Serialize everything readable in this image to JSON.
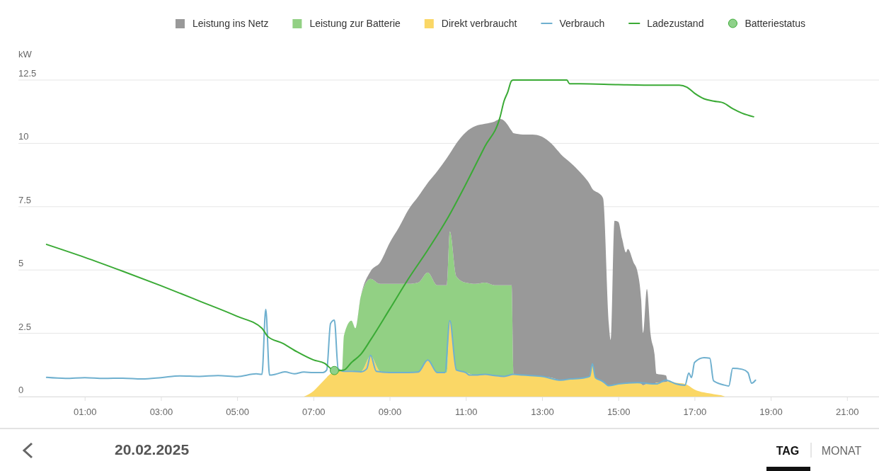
{
  "chart_data": {
    "type": "area",
    "stacked": true,
    "ylabel": "kW",
    "xlim": [
      -0.74,
      21.84
    ],
    "ylim": [
      0,
      12.5
    ],
    "xticks": [
      {
        "value": 1,
        "label": "01:00"
      },
      {
        "value": 3,
        "label": "03:00"
      },
      {
        "value": 5,
        "label": "05:00"
      },
      {
        "value": 7,
        "label": "07:00"
      },
      {
        "value": 9,
        "label": "09:00"
      },
      {
        "value": 11,
        "label": "11:00"
      },
      {
        "value": 13,
        "label": "13:00"
      },
      {
        "value": 15,
        "label": "15:00"
      },
      {
        "value": 17,
        "label": "17:00"
      },
      {
        "value": 19,
        "label": "19:00"
      },
      {
        "value": 21,
        "label": "21:00"
      }
    ],
    "yticks": [
      0,
      2.5,
      5,
      7.5,
      10,
      12.5
    ],
    "grid": "y",
    "legend": "top",
    "marker": "none",
    "line_style": "solid",
    "annotations": [
      "20.02.2025",
      "TAG",
      "MONAT"
    ],
    "x": [
      6.75,
      7.0,
      7.25,
      7.5,
      7.75,
      7.8,
      8.0,
      8.1,
      8.25,
      8.5,
      8.75,
      9.0,
      9.25,
      9.5,
      9.75,
      10.0,
      10.25,
      10.5,
      10.58,
      10.75,
      11.0,
      11.25,
      11.5,
      11.75,
      11.9,
      12.0,
      12.2,
      12.25,
      12.5,
      12.75,
      13.0,
      13.25,
      13.5,
      13.75,
      14.0,
      14.25,
      14.32,
      14.4,
      14.5,
      14.6,
      14.75,
      14.8,
      14.9,
      15.0,
      15.1,
      15.2,
      15.25,
      15.4,
      15.5,
      15.6,
      15.65,
      15.75,
      15.85,
      15.95,
      16.0,
      16.25,
      16.3,
      16.5,
      16.75,
      17.0,
      17.5,
      17.75,
      17.8
    ],
    "series": [
      {
        "name": "Direkt verbraucht",
        "color": "#fad766",
        "values": [
          0,
          0.22,
          0.6,
          0.95,
          1.03,
          1.03,
          1.03,
          1.0,
          1.0,
          1.6,
          1.0,
          0.95,
          0.95,
          0.95,
          0.97,
          1.45,
          0.95,
          0.95,
          3.0,
          1.05,
          0.95,
          0.85,
          0.88,
          0.83,
          0.8,
          0.8,
          0.85,
          0.88,
          0.85,
          0.82,
          0.8,
          0.75,
          0.65,
          0.7,
          0.72,
          0.8,
          1.3,
          0.75,
          0.65,
          0.55,
          0.43,
          0.45,
          0.48,
          0.5,
          0.52,
          0.5,
          0.52,
          0.55,
          0.55,
          0.5,
          0.45,
          0.5,
          0.5,
          0.52,
          0.55,
          0.58,
          0.6,
          0.55,
          0.5,
          0.28,
          0.1,
          0.03,
          0
        ]
      },
      {
        "name": "Leistung zur Batterie",
        "color": "#92d084",
        "values": [
          0,
          0,
          0,
          0,
          0,
          1.37,
          1.97,
          1.7,
          3.0,
          3.05,
          3.45,
          3.5,
          3.5,
          3.5,
          3.53,
          3.45,
          3.45,
          3.45,
          3.52,
          3.7,
          3.55,
          3.6,
          3.62,
          3.57,
          3.6,
          3.6,
          3.55,
          0,
          0,
          0,
          0,
          0,
          0,
          0,
          0,
          0,
          0,
          0,
          0,
          0,
          0,
          0,
          0,
          0,
          0,
          0,
          0,
          0,
          0,
          0,
          0,
          0,
          0,
          0,
          0,
          0,
          0,
          0,
          0,
          0,
          0,
          0,
          0
        ]
      },
      {
        "name": "Leistung ins Netz",
        "color": "#999999",
        "values": [
          0,
          0,
          0,
          0,
          0,
          0,
          0,
          0,
          0,
          0.3,
          0.85,
          1.62,
          2.25,
          2.95,
          3.4,
          3.54,
          4.5,
          5.02,
          3.08,
          5.25,
          5.94,
          6.23,
          6.27,
          6.46,
          6.56,
          6.5,
          6.1,
          9.52,
          9.5,
          9.53,
          9.46,
          9.23,
          8.91,
          8.53,
          8.14,
          7.59,
          6.9,
          7.35,
          7.37,
          7.28,
          2.46,
          1.79,
          6.46,
          6.4,
          5.72,
          5.19,
          5.31,
          4.75,
          4.4,
          3.33,
          2.07,
          3.75,
          1.93,
          1.16,
          0.35,
          0.26,
          0,
          0,
          0,
          0,
          0,
          0,
          0
        ]
      },
      {
        "name": "Verbrauch",
        "type": "line",
        "color": "#6fb0cf",
        "x": [
          0,
          0.5,
          1.0,
          1.5,
          2.0,
          2.5,
          3.0,
          3.5,
          4.0,
          4.5,
          5.0,
          5.5,
          5.65,
          5.75,
          5.85,
          6.0,
          6.25,
          6.5,
          6.75,
          7.0,
          7.25,
          7.35,
          7.45,
          7.55,
          7.65,
          7.8,
          8.0,
          8.25,
          8.4,
          8.5,
          8.65,
          9.0,
          9.5,
          9.75,
          10.0,
          10.25,
          10.45,
          10.58,
          10.75,
          11.0,
          11.1,
          11.25,
          11.5,
          11.75,
          12.0,
          12.25,
          12.5,
          13.0,
          13.5,
          13.75,
          14.0,
          14.25,
          14.32,
          14.4,
          14.6,
          14.75,
          15.0,
          15.5,
          16.0,
          16.25,
          16.5,
          16.75,
          16.85,
          16.92,
          17.0,
          17.25,
          17.4,
          17.5,
          17.75,
          17.9,
          18.0,
          18.25,
          18.4,
          18.5,
          18.6
        ],
        "values": [
          0.76,
          0.72,
          0.75,
          0.72,
          0.73,
          0.7,
          0.75,
          0.82,
          0.8,
          0.83,
          0.79,
          0.9,
          0.88,
          3.45,
          0.85,
          0.88,
          0.98,
          0.9,
          0.97,
          0.95,
          0.95,
          1.05,
          2.89,
          3.02,
          1.1,
          1.0,
          1.0,
          0.98,
          1.1,
          1.63,
          1.0,
          0.95,
          0.95,
          0.97,
          1.45,
          0.95,
          0.95,
          3.0,
          1.05,
          0.95,
          0.85,
          0.85,
          0.88,
          0.83,
          0.8,
          0.88,
          0.85,
          0.8,
          0.65,
          0.7,
          0.72,
          0.8,
          1.3,
          0.75,
          0.6,
          0.43,
          0.5,
          0.55,
          0.5,
          0.65,
          0.51,
          0.45,
          0.93,
          0.75,
          1.35,
          1.54,
          1.52,
          0.62,
          0.47,
          0.42,
          1.12,
          1.08,
          0.95,
          0.53,
          0.65
        ]
      },
      {
        "name": "Ladezustand",
        "type": "line",
        "color": "#3aaa35",
        "x": [
          0,
          1.0,
          2.0,
          3.0,
          4.0,
          5.0,
          5.65,
          5.8,
          6.2,
          6.57,
          7.0,
          7.3,
          7.5,
          7.65,
          7.8,
          8.0,
          8.25,
          8.5,
          9.0,
          9.5,
          10.0,
          10.5,
          11.0,
          11.5,
          11.9,
          12.0,
          12.1,
          12.2,
          12.25,
          13.65,
          13.72,
          14.0,
          15.0,
          16.0,
          16.6,
          16.8,
          17.0,
          17.25,
          17.5,
          17.75,
          18.0,
          18.25,
          18.55
        ],
        "values": [
          6.01,
          5.5,
          4.95,
          4.38,
          3.78,
          3.17,
          2.7,
          2.38,
          2.1,
          1.77,
          1.45,
          1.31,
          1.07,
          1.03,
          1.05,
          1.35,
          1.68,
          2.24,
          3.45,
          4.67,
          5.79,
          6.99,
          8.39,
          9.88,
          11.05,
          11.66,
          12.03,
          12.47,
          12.5,
          12.5,
          12.35,
          12.35,
          12.32,
          12.3,
          12.3,
          12.22,
          11.98,
          11.76,
          11.67,
          11.6,
          11.37,
          11.19,
          11.05
        ]
      },
      {
        "name": "Batteriestatus",
        "type": "scatter",
        "marker": "circle",
        "color": "#8fd18a",
        "x": [
          7.55
        ],
        "values": [
          1.03
        ]
      }
    ]
  }
}
